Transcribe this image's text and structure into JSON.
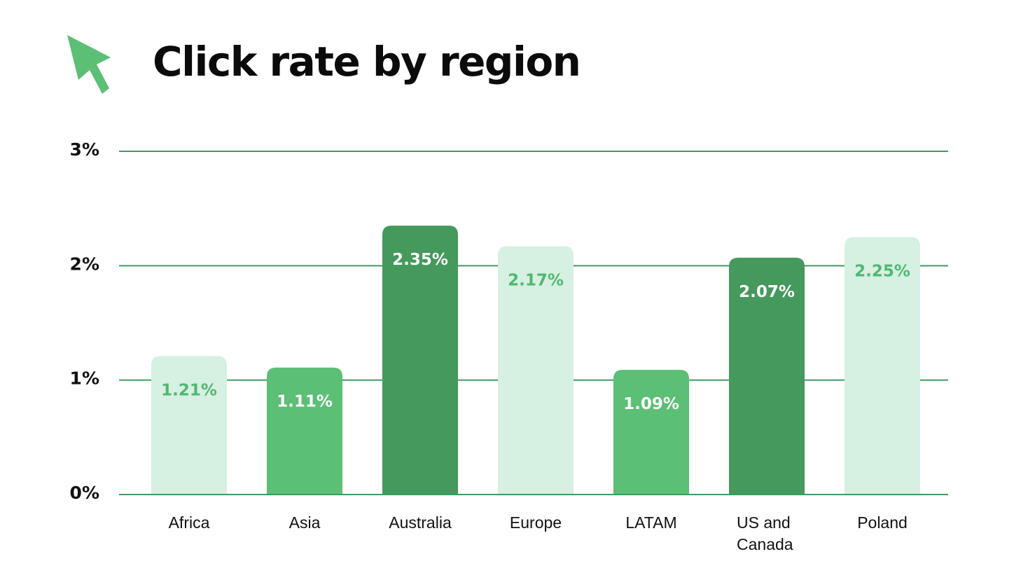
{
  "title": "Click rate by region",
  "icons": {
    "cursor": "cursor-arrow-icon"
  },
  "colors": {
    "grid": "#3f9b63",
    "text": "#111111",
    "light": "#d6f0e2",
    "medium": "#5bbf75",
    "dark": "#45995c",
    "light_label": "#4fb86f",
    "on_dark_label": "#ffffff"
  },
  "chart_data": {
    "type": "bar",
    "title": "Click rate by region",
    "xlabel": "",
    "ylabel": "",
    "ylim": [
      0,
      3
    ],
    "grid": true,
    "y_ticks": [
      0,
      1,
      2,
      3
    ],
    "y_tick_labels": [
      "0%",
      "1%",
      "2%",
      "3%"
    ],
    "categories": [
      "Africa",
      "Asia",
      "Australia",
      "Europe",
      "LATAM",
      "US and Canada",
      "Poland"
    ],
    "category_lines": [
      [
        "Africa"
      ],
      [
        "Asia"
      ],
      [
        "Australia"
      ],
      [
        "Europe"
      ],
      [
        "LATAM"
      ],
      [
        "US and",
        "Canada"
      ],
      [
        "Poland"
      ]
    ],
    "values": [
      1.21,
      1.11,
      2.35,
      2.17,
      1.09,
      2.07,
      2.25
    ],
    "value_labels": [
      "1.21%",
      "1.11%",
      "2.35%",
      "2.17%",
      "1.09%",
      "2.07%",
      "2.25%"
    ],
    "bar_shades": [
      "light",
      "medium",
      "dark",
      "light",
      "medium",
      "dark",
      "light"
    ]
  }
}
